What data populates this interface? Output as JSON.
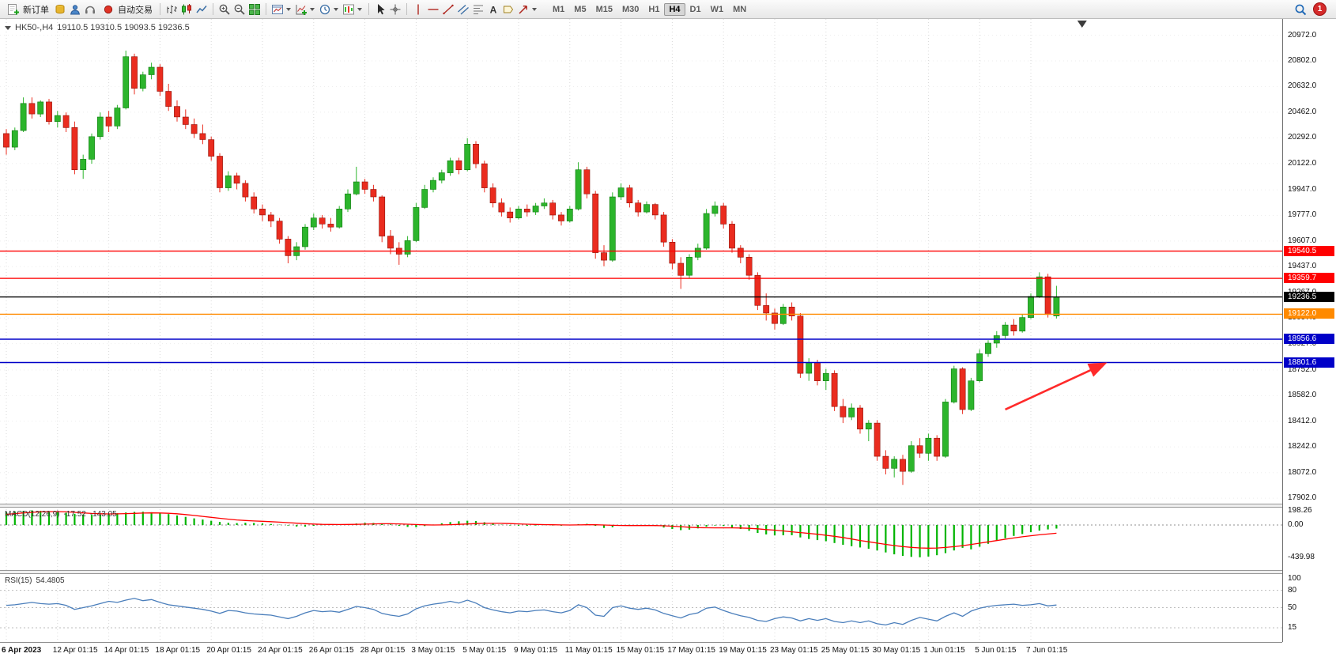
{
  "toolbar": {
    "new_order_label": "新订单",
    "autotrade_label": "自动交易",
    "text_tool_glyph": "A",
    "timeframes": [
      "M1",
      "M5",
      "M15",
      "M30",
      "H1",
      "H4",
      "D1",
      "W1",
      "MN"
    ],
    "active_timeframe": "H4",
    "notification_badge": "1"
  },
  "chart_data": {
    "type": "candlestick",
    "symbol": "HK50-",
    "timeframe": "H4",
    "title": "HK50-,H4",
    "ohlc_display": "19110.5 19310.5 19093.5 19236.5",
    "current_bar": {
      "open": 19110.5,
      "high": 19310.5,
      "low": 19093.5,
      "close": 19236.5
    },
    "price_axis_values": [
      20972,
      20802,
      20632,
      20462,
      20292,
      20122,
      19947,
      19777,
      19607,
      19437,
      19267,
      19097,
      18927,
      18752,
      18582,
      18412,
      18242,
      18072,
      17902
    ],
    "date_labels": [
      "6 Apr 2023",
      "12 Apr 01:15",
      "14 Apr 01:15",
      "18 Apr 01:15",
      "20 Apr 01:15",
      "24 Apr 01:15",
      "26 Apr 01:15",
      "28 Apr 01:15",
      "3 May 01:15",
      "5 May 01:15",
      "9 May 01:15",
      "11 May 01:15",
      "15 May 01:15",
      "17 May 01:15",
      "19 May 01:15",
      "23 May 01:15",
      "25 May 01:15",
      "30 May 01:15",
      "1 Jun 01:15",
      "5 Jun 01:15",
      "7 Jun 01:15"
    ],
    "levels": [
      {
        "price": 19540.5,
        "label": "19540.5",
        "color": "#ff0000"
      },
      {
        "price": 19359.7,
        "label": "19359.7",
        "color": "#ff0000"
      },
      {
        "price": 19236.5,
        "label": "19236.5",
        "color": "#000000"
      },
      {
        "price": 19122.0,
        "label": "19122.0",
        "color": "#ff8a00"
      },
      {
        "price": 18956.6,
        "label": "18956.6",
        "color": "#0000c8"
      },
      {
        "price": 18801.6,
        "label": "18801.6",
        "color": "#0000c8"
      }
    ],
    "candles": [
      [
        20320,
        20350,
        20180,
        20230
      ],
      [
        20230,
        20360,
        20210,
        20340
      ],
      [
        20340,
        20560,
        20330,
        20520
      ],
      [
        20520,
        20560,
        20420,
        20450
      ],
      [
        20450,
        20540,
        20430,
        20530
      ],
      [
        20530,
        20550,
        20380,
        20400
      ],
      [
        20400,
        20470,
        20360,
        20440
      ],
      [
        20440,
        20460,
        20330,
        20360
      ],
      [
        20360,
        20400,
        20050,
        20080
      ],
      [
        20080,
        20180,
        20020,
        20150
      ],
      [
        20150,
        20320,
        20120,
        20300
      ],
      [
        20300,
        20460,
        20280,
        20430
      ],
      [
        20430,
        20470,
        20330,
        20370
      ],
      [
        20370,
        20510,
        20350,
        20490
      ],
      [
        20490,
        20870,
        20480,
        20830
      ],
      [
        20830,
        20850,
        20580,
        20620
      ],
      [
        20620,
        20730,
        20600,
        20710
      ],
      [
        20710,
        20790,
        20680,
        20760
      ],
      [
        20760,
        20780,
        20570,
        20600
      ],
      [
        20600,
        20650,
        20470,
        20500
      ],
      [
        20500,
        20540,
        20400,
        20430
      ],
      [
        20430,
        20480,
        20350,
        20380
      ],
      [
        20380,
        20420,
        20290,
        20320
      ],
      [
        20320,
        20380,
        20250,
        20280
      ],
      [
        20280,
        20300,
        20140,
        20170
      ],
      [
        20170,
        20190,
        19930,
        19960
      ],
      [
        19960,
        20070,
        19940,
        20040
      ],
      [
        20040,
        20060,
        19950,
        19990
      ],
      [
        19990,
        20010,
        19870,
        19900
      ],
      [
        19900,
        19930,
        19790,
        19820
      ],
      [
        19820,
        19850,
        19740,
        19780
      ],
      [
        19780,
        19800,
        19700,
        19740
      ],
      [
        19740,
        19760,
        19590,
        19620
      ],
      [
        19620,
        19640,
        19460,
        19510
      ],
      [
        19510,
        19600,
        19480,
        19570
      ],
      [
        19570,
        19720,
        19550,
        19700
      ],
      [
        19700,
        19790,
        19680,
        19760
      ],
      [
        19760,
        19780,
        19690,
        19720
      ],
      [
        19720,
        19760,
        19670,
        19700
      ],
      [
        19700,
        19840,
        19690,
        19820
      ],
      [
        19820,
        19950,
        19800,
        19920
      ],
      [
        19920,
        20100,
        19910,
        20000
      ],
      [
        20000,
        20020,
        19920,
        19950
      ],
      [
        19950,
        19980,
        19870,
        19900
      ],
      [
        19900,
        19910,
        19600,
        19640
      ],
      [
        19640,
        19680,
        19520,
        19560
      ],
      [
        19560,
        19600,
        19450,
        19520
      ],
      [
        19520,
        19640,
        19500,
        19610
      ],
      [
        19610,
        19860,
        19600,
        19830
      ],
      [
        19830,
        19980,
        19820,
        19950
      ],
      [
        19950,
        20030,
        19930,
        20010
      ],
      [
        20010,
        20080,
        19990,
        20060
      ],
      [
        20060,
        20160,
        20040,
        20140
      ],
      [
        20140,
        20160,
        20050,
        20080
      ],
      [
        20080,
        20290,
        20070,
        20250
      ],
      [
        20250,
        20270,
        20090,
        20120
      ],
      [
        20120,
        20140,
        19930,
        19960
      ],
      [
        19960,
        19990,
        19830,
        19860
      ],
      [
        19860,
        19890,
        19770,
        19800
      ],
      [
        19800,
        19830,
        19730,
        19760
      ],
      [
        19760,
        19840,
        19750,
        19820
      ],
      [
        19820,
        19850,
        19770,
        19800
      ],
      [
        19800,
        19860,
        19780,
        19840
      ],
      [
        19840,
        19890,
        19820,
        19860
      ],
      [
        19860,
        19880,
        19750,
        19780
      ],
      [
        19780,
        19800,
        19710,
        19740
      ],
      [
        19740,
        19840,
        19730,
        19820
      ],
      [
        19820,
        20130,
        19810,
        20080
      ],
      [
        20080,
        20100,
        19890,
        19920
      ],
      [
        19920,
        19940,
        19490,
        19530
      ],
      [
        19530,
        19580,
        19440,
        19480
      ],
      [
        19480,
        19930,
        19470,
        19900
      ],
      [
        19900,
        19990,
        19880,
        19960
      ],
      [
        19960,
        19980,
        19830,
        19860
      ],
      [
        19860,
        19880,
        19770,
        19800
      ],
      [
        19800,
        19870,
        19790,
        19850
      ],
      [
        19850,
        19860,
        19750,
        19780
      ],
      [
        19780,
        19800,
        19570,
        19600
      ],
      [
        19600,
        19620,
        19420,
        19460
      ],
      [
        19460,
        19500,
        19290,
        19380
      ],
      [
        19380,
        19520,
        19360,
        19500
      ],
      [
        19500,
        19590,
        19480,
        19560
      ],
      [
        19560,
        19820,
        19550,
        19790
      ],
      [
        19790,
        19870,
        19770,
        19840
      ],
      [
        19840,
        19860,
        19690,
        19720
      ],
      [
        19720,
        19740,
        19530,
        19560
      ],
      [
        19560,
        19580,
        19460,
        19500
      ],
      [
        19500,
        19520,
        19350,
        19380
      ],
      [
        19380,
        19400,
        19150,
        19180
      ],
      [
        19180,
        19260,
        19080,
        19130
      ],
      [
        19130,
        19160,
        19020,
        19060
      ],
      [
        19060,
        19190,
        19050,
        19170
      ],
      [
        19170,
        19200,
        19080,
        19110
      ],
      [
        19110,
        19130,
        18700,
        18730
      ],
      [
        18730,
        18830,
        18680,
        18800
      ],
      [
        18800,
        18820,
        18650,
        18680
      ],
      [
        18680,
        18760,
        18620,
        18730
      ],
      [
        18730,
        18750,
        18480,
        18510
      ],
      [
        18510,
        18560,
        18400,
        18440
      ],
      [
        18440,
        18530,
        18420,
        18500
      ],
      [
        18500,
        18520,
        18330,
        18360
      ],
      [
        18360,
        18420,
        18280,
        18400
      ],
      [
        18400,
        18420,
        18150,
        18180
      ],
      [
        18180,
        18220,
        18060,
        18100
      ],
      [
        18100,
        18180,
        18040,
        18160
      ],
      [
        18160,
        18190,
        17990,
        18080
      ],
      [
        18080,
        18280,
        18070,
        18250
      ],
      [
        18250,
        18300,
        18170,
        18200
      ],
      [
        18200,
        18330,
        18150,
        18300
      ],
      [
        18300,
        18320,
        18150,
        18180
      ],
      [
        18180,
        18560,
        18170,
        18540
      ],
      [
        18540,
        18780,
        18530,
        18760
      ],
      [
        18760,
        18770,
        18460,
        18490
      ],
      [
        18490,
        18700,
        18480,
        18680
      ],
      [
        18680,
        18890,
        18670,
        18860
      ],
      [
        18860,
        18950,
        18840,
        18930
      ],
      [
        18930,
        19010,
        18900,
        18980
      ],
      [
        18980,
        19070,
        18960,
        19050
      ],
      [
        19050,
        19090,
        18980,
        19010
      ],
      [
        19010,
        19120,
        19000,
        19100
      ],
      [
        19100,
        19260,
        19090,
        19240
      ],
      [
        19240,
        19400,
        19230,
        19370
      ],
      [
        19370,
        19390,
        19100,
        19120
      ],
      [
        19110.5,
        19310.5,
        19093.5,
        19236.5
      ]
    ],
    "indicators": {
      "macd": {
        "label": "MACD(12,26,9)",
        "value_main": "-17.52",
        "value_signal": "-143.05",
        "axis": [
          {
            "value": 198.26,
            "label": "198.26"
          },
          {
            "value": 0,
            "label": "0.00"
          },
          {
            "value": -439.98,
            "label": "-439.98"
          }
        ],
        "histogram": [
          175,
          185,
          192,
          198,
          193,
          185,
          176,
          166,
          152,
          142,
          138,
          142,
          152,
          160,
          170,
          178,
          180,
          174,
          162,
          148,
          130,
          110,
          90,
          74,
          58,
          42,
          30,
          26,
          30,
          28,
          22,
          14,
          4,
          -8,
          -20,
          -22,
          -12,
          -2,
          2,
          6,
          10,
          20,
          30,
          28,
          22,
          8,
          -12,
          -26,
          -30,
          -14,
          6,
          24,
          40,
          50,
          58,
          54,
          38,
          18,
          4,
          -6,
          -10,
          -10,
          -6,
          -2,
          -6,
          -10,
          -4,
          12,
          16,
          -12,
          -40,
          -30,
          -8,
          2,
          0,
          -4,
          -14,
          -34,
          -54,
          -70,
          -62,
          -46,
          -22,
          -8,
          -14,
          -34,
          -54,
          -78,
          -108,
          -128,
          -142,
          -140,
          -138,
          -168,
          -190,
          -205,
          -220,
          -245,
          -268,
          -288,
          -305,
          -322,
          -345,
          -372,
          -398,
          -420,
          -432,
          -438,
          -428,
          -410,
          -382,
          -345,
          -310,
          -330,
          -295,
          -255,
          -215,
          -180,
          -148,
          -122,
          -98,
          -76,
          -60,
          -48
        ],
        "signal": [
          145,
          155,
          164,
          172,
          178,
          181,
          181,
          178,
          172,
          164,
          157,
          152,
          150,
          151,
          154,
          158,
          162,
          164,
          163,
          159,
          152,
          142,
          130,
          117,
          104,
          91,
          79,
          69,
          61,
          55,
          50,
          45,
          39,
          32,
          25,
          18,
          13,
          9,
          7,
          6,
          7,
          9,
          12,
          15,
          17,
          17,
          15,
          11,
          6,
          2,
          0,
          1,
          4,
          9,
          14,
          19,
          22,
          23,
          22,
          19,
          15,
          11,
          8,
          5,
          3,
          1,
          0,
          1,
          3,
          3,
          0,
          -4,
          -6,
          -7,
          -7,
          -7,
          -8,
          -11,
          -16,
          -23,
          -30,
          -35,
          -38,
          -39,
          -39,
          -39,
          -41,
          -45,
          -52,
          -62,
          -70,
          -81,
          -92,
          -103,
          -114,
          -126,
          -139,
          -153,
          -170,
          -190,
          -210,
          -228,
          -246,
          -263,
          -279,
          -293,
          -304,
          -311,
          -314,
          -312,
          -305,
          -294,
          -280,
          -264,
          -247,
          -229,
          -211,
          -193,
          -176,
          -160,
          -146,
          -133,
          -122,
          -112
        ]
      },
      "rsi": {
        "label": "RSI(15)",
        "value": "54.4805",
        "axis": [
          {
            "value": 100,
            "label": "100"
          },
          {
            "value": 80,
            "label": "80"
          },
          {
            "value": 50,
            "label": "50"
          },
          {
            "value": 15,
            "label": "15"
          }
        ],
        "levels": [
          80,
          50,
          15
        ],
        "values": [
          54,
          55,
          57,
          59,
          57,
          56,
          57,
          54,
          47,
          50,
          53,
          57,
          61,
          59,
          63,
          66,
          62,
          64,
          59,
          55,
          53,
          51,
          49,
          47,
          44,
          40,
          45,
          44,
          41,
          39,
          38,
          37,
          34,
          31,
          35,
          41,
          45,
          43,
          44,
          42,
          47,
          52,
          50,
          47,
          40,
          37,
          35,
          39,
          48,
          53,
          56,
          58,
          61,
          58,
          63,
          58,
          50,
          46,
          43,
          41,
          44,
          43,
          45,
          46,
          43,
          41,
          45,
          55,
          50,
          37,
          35,
          50,
          53,
          49,
          47,
          49,
          46,
          40,
          36,
          32,
          38,
          41,
          49,
          51,
          45,
          40,
          36,
          33,
          28,
          26,
          31,
          34,
          32,
          27,
          31,
          28,
          31,
          26,
          24,
          27,
          24,
          27,
          22,
          20,
          24,
          21,
          28,
          33,
          30,
          27,
          35,
          41,
          35,
          44,
          49,
          52,
          54,
          55,
          56,
          54,
          55,
          57,
          53,
          54.4805
        ]
      }
    },
    "colors": {
      "up": "#2cb52c",
      "down": "#ea2c1f",
      "macd_histogram": "#00b400",
      "macd_signal": "#ff0000",
      "rsi_line": "#4a7ebb",
      "grid": "#d9d9d9",
      "background": "#ffffff"
    },
    "annotations": {
      "arrow": {
        "from_bar": 117,
        "from_price": 18490,
        "to_bar": 128.5,
        "to_price": 18790,
        "color": "#ff2a2a"
      }
    }
  }
}
